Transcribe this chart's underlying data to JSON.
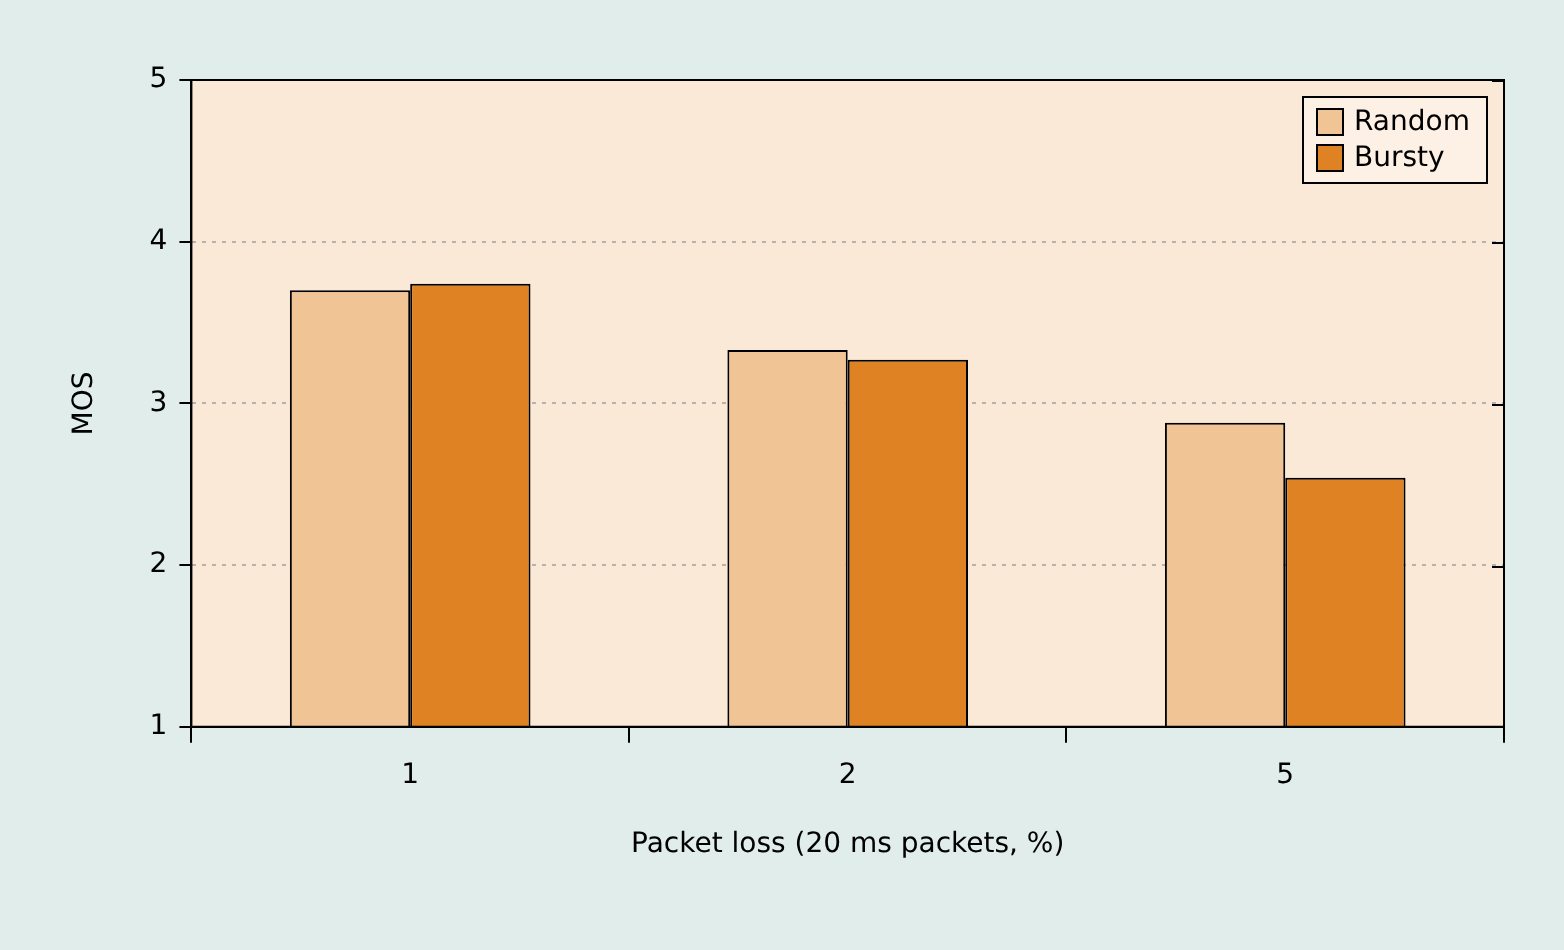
{
  "chart_data": {
    "type": "bar",
    "xlabel": "Packet loss (20 ms packets, %)",
    "ylabel": "MOS",
    "categories": [
      "1",
      "2",
      "5"
    ],
    "series": [
      {
        "name": "Random",
        "color": "#f1c496",
        "values": [
          3.7,
          3.33,
          2.88
        ]
      },
      {
        "name": "Bursty",
        "color": "#de8224",
        "values": [
          3.74,
          3.27,
          2.54
        ]
      }
    ],
    "ylim": [
      1,
      5
    ],
    "yticks": [
      1,
      2,
      3,
      4,
      5
    ],
    "grid": "y",
    "legend": "top right"
  }
}
